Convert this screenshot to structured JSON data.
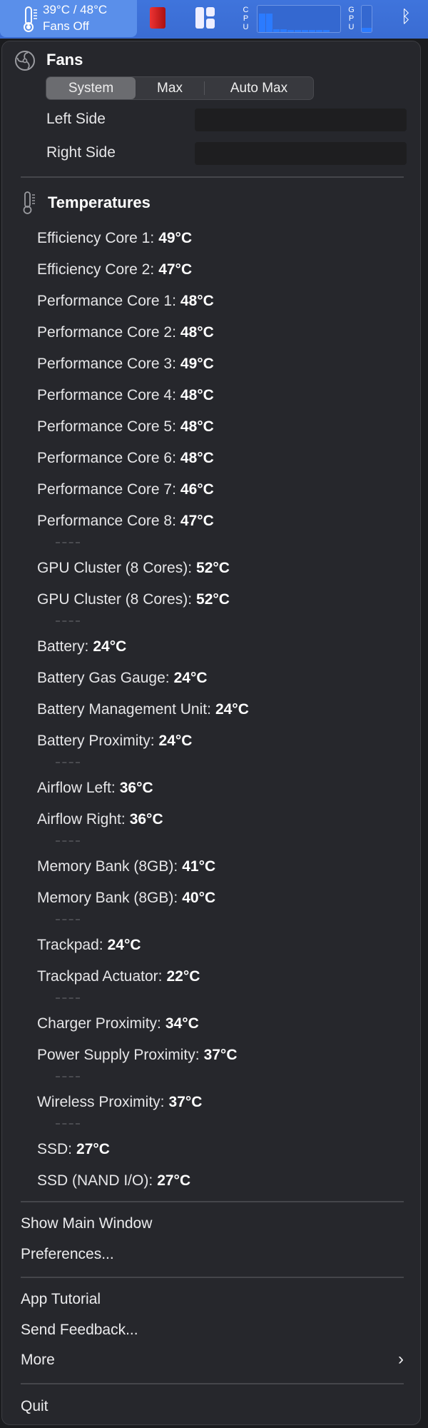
{
  "menubar": {
    "temp_text": "39°C / 48°C",
    "fan_text": "Fans Off",
    "cpu_label": "CPU",
    "gpu_label": "GPU",
    "cpu_load_bars": [
      0.7,
      0.7,
      0.12,
      0.12,
      0.07,
      0.07,
      0.07,
      0.07,
      0.07,
      0.07
    ],
    "gpu_load": 0.15,
    "icons": [
      "thermometer-icon",
      "red-app-icon",
      "layout-icon",
      "bluetooth-icon"
    ]
  },
  "fans": {
    "title": "Fans",
    "modes": [
      "System",
      "Max",
      "Auto Max"
    ],
    "selected_mode": "System",
    "left_label": "Left Side",
    "right_label": "Right Side"
  },
  "temperatures": {
    "title": "Temperatures",
    "groups": [
      [
        [
          "Efficiency Core 1:",
          "49°C"
        ],
        [
          "Efficiency Core 2:",
          "47°C"
        ],
        [
          "Performance Core 1:",
          "48°C"
        ],
        [
          "Performance Core 2:",
          "48°C"
        ],
        [
          "Performance Core 3:",
          "49°C"
        ],
        [
          "Performance Core 4:",
          "48°C"
        ],
        [
          "Performance Core 5:",
          "48°C"
        ],
        [
          "Performance Core 6:",
          "48°C"
        ],
        [
          "Performance Core 7:",
          "46°C"
        ],
        [
          "Performance Core 8:",
          "47°C"
        ]
      ],
      [
        [
          "GPU Cluster (8 Cores):",
          "52°C"
        ],
        [
          "GPU Cluster (8 Cores):",
          "52°C"
        ]
      ],
      [
        [
          "Battery:",
          "24°C"
        ],
        [
          "Battery Gas Gauge:",
          "24°C"
        ],
        [
          "Battery Management Unit:",
          "24°C"
        ],
        [
          "Battery Proximity:",
          "24°C"
        ]
      ],
      [
        [
          "Airflow Left:",
          "36°C"
        ],
        [
          "Airflow Right:",
          "36°C"
        ]
      ],
      [
        [
          "Memory Bank (8GB):",
          "41°C"
        ],
        [
          "Memory Bank (8GB):",
          "40°C"
        ]
      ],
      [
        [
          "Trackpad:",
          "24°C"
        ],
        [
          "Trackpad Actuator:",
          "22°C"
        ]
      ],
      [
        [
          "Charger Proximity:",
          "34°C"
        ],
        [
          "Power Supply Proximity:",
          "37°C"
        ]
      ],
      [
        [
          "Wireless Proximity:",
          "37°C"
        ]
      ],
      [
        [
          "SSD:",
          "27°C"
        ],
        [
          "SSD (NAND I/O):",
          "27°C"
        ]
      ]
    ]
  },
  "menu": {
    "show_main": "Show Main Window",
    "preferences": "Preferences...",
    "tutorial": "App Tutorial",
    "feedback": "Send Feedback...",
    "more": "More",
    "quit": "Quit"
  },
  "colors": {
    "menubar": "#3f74dc",
    "panel": "#26272c",
    "accent": "#2b7bff"
  }
}
